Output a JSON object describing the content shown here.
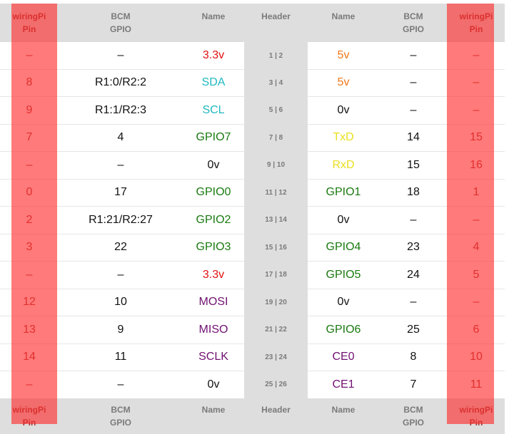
{
  "columns": [
    "wiringPi Pin",
    "BCM GPIO",
    "Name",
    "Header",
    "Name",
    "BCM GPIO",
    "wiringPi Pin"
  ],
  "column_lines": [
    [
      "wiringPi",
      "Pin"
    ],
    [
      "BCM",
      "GPIO"
    ],
    [
      "Name",
      ""
    ],
    [
      "Header",
      ""
    ],
    [
      "Name",
      ""
    ],
    [
      "BCM",
      "GPIO"
    ],
    [
      "wiringPi",
      "Pin"
    ]
  ],
  "colors": {
    "red": "#e01010",
    "orange": "#f07818",
    "cyan": "#20b8c0",
    "green": "#1a7a10",
    "yellow": "#e8e020",
    "purple": "#701070",
    "black": "#111111",
    "highlight": "#ff5a5a"
  },
  "rows": [
    {
      "wp_l": "–",
      "bcm_l": "–",
      "name_l": "3.3v",
      "name_l_color": "red",
      "header": "1 | 2",
      "name_r": "5v",
      "name_r_color": "orange",
      "bcm_r": "–",
      "wp_r": "–"
    },
    {
      "wp_l": "8",
      "bcm_l": "R1:0/R2:2",
      "name_l": "SDA",
      "name_l_color": "cyan",
      "header": "3 | 4",
      "name_r": "5v",
      "name_r_color": "orange",
      "bcm_r": "–",
      "wp_r": "–"
    },
    {
      "wp_l": "9",
      "bcm_l": "R1:1/R2:3",
      "name_l": "SCL",
      "name_l_color": "cyan",
      "header": "5 | 6",
      "name_r": "0v",
      "name_r_color": "black",
      "bcm_r": "–",
      "wp_r": "–"
    },
    {
      "wp_l": "7",
      "bcm_l": "4",
      "name_l": "GPIO7",
      "name_l_color": "green",
      "header": "7 | 8",
      "name_r": "TxD",
      "name_r_color": "yellow",
      "bcm_r": "14",
      "wp_r": "15"
    },
    {
      "wp_l": "–",
      "bcm_l": "–",
      "name_l": "0v",
      "name_l_color": "black",
      "header": "9 | 10",
      "name_r": "RxD",
      "name_r_color": "yellow",
      "bcm_r": "15",
      "wp_r": "16"
    },
    {
      "wp_l": "0",
      "bcm_l": "17",
      "name_l": "GPIO0",
      "name_l_color": "green",
      "header": "11 | 12",
      "name_r": "GPIO1",
      "name_r_color": "green",
      "bcm_r": "18",
      "wp_r": "1"
    },
    {
      "wp_l": "2",
      "bcm_l": "R1:21/R2:27",
      "name_l": "GPIO2",
      "name_l_color": "green",
      "header": "13 | 14",
      "name_r": "0v",
      "name_r_color": "black",
      "bcm_r": "–",
      "wp_r": "–"
    },
    {
      "wp_l": "3",
      "bcm_l": "22",
      "name_l": "GPIO3",
      "name_l_color": "green",
      "header": "15 | 16",
      "name_r": "GPIO4",
      "name_r_color": "green",
      "bcm_r": "23",
      "wp_r": "4"
    },
    {
      "wp_l": "–",
      "bcm_l": "–",
      "name_l": "3.3v",
      "name_l_color": "red",
      "header": "17 | 18",
      "name_r": "GPIO5",
      "name_r_color": "green",
      "bcm_r": "24",
      "wp_r": "5"
    },
    {
      "wp_l": "12",
      "bcm_l": "10",
      "name_l": "MOSI",
      "name_l_color": "purple",
      "header": "19 | 20",
      "name_r": "0v",
      "name_r_color": "black",
      "bcm_r": "–",
      "wp_r": "–"
    },
    {
      "wp_l": "13",
      "bcm_l": "9",
      "name_l": "MISO",
      "name_l_color": "purple",
      "header": "21 | 22",
      "name_r": "GPIO6",
      "name_r_color": "green",
      "bcm_r": "25",
      "wp_r": "6"
    },
    {
      "wp_l": "14",
      "bcm_l": "11",
      "name_l": "SCLK",
      "name_l_color": "purple",
      "header": "23 | 24",
      "name_r": "CE0",
      "name_r_color": "purple",
      "bcm_r": "8",
      "wp_r": "10"
    },
    {
      "wp_l": "–",
      "bcm_l": "–",
      "name_l": "0v",
      "name_l_color": "black",
      "header": "25 | 26",
      "name_r": "CE1",
      "name_r_color": "purple",
      "bcm_r": "7",
      "wp_r": "11"
    }
  ]
}
